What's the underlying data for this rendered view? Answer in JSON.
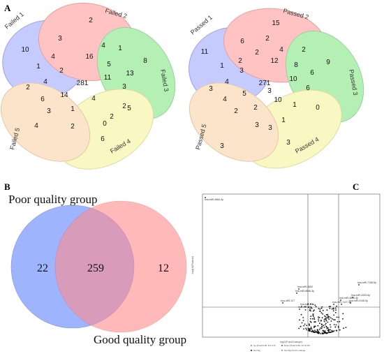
{
  "figure": {
    "panel_a_label": "A",
    "panel_b_label": "B",
    "panel_c_label": "C"
  },
  "venn_failed": {
    "sets": [
      "Failed 1",
      "Failed 2",
      "Failed 3",
      "Failed 4",
      "Failed 5"
    ],
    "colors": [
      "#7f8cff",
      "#ff7b7b",
      "#5be05b",
      "#f5f07a",
      "#f7c48a"
    ],
    "regions": [
      "10",
      "3",
      "2",
      "4",
      "16",
      "4",
      "1",
      "8",
      "13",
      "5",
      "1",
      "2",
      "281",
      "11",
      "3",
      "2",
      "4",
      "14",
      "6",
      "2",
      "3",
      "1",
      "4",
      "2",
      "5",
      "4",
      "2",
      "0",
      "6"
    ]
  },
  "venn_passed": {
    "sets": [
      "Passed 1",
      "Passed 2",
      "Passed 3",
      "Passed 4",
      "Passed 5"
    ],
    "colors": [
      "#7f8cff",
      "#ff7b7b",
      "#5be05b",
      "#f5f07a",
      "#f7c48a"
    ],
    "regions": [
      "11",
      "6",
      "15",
      "2",
      "2",
      "2",
      "4",
      "2",
      "12",
      "9",
      "8",
      "6",
      "1",
      "3",
      "271",
      "10",
      "6",
      "3",
      "4",
      "5",
      "3",
      "10",
      "4",
      "2",
      "2",
      "1",
      "1",
      "0",
      "3",
      "3",
      "3",
      "3"
    ]
  },
  "venn_quality": {
    "left_label": "Poor quality group",
    "right_label": "Good quality group",
    "left_only": "22",
    "overlap": "259",
    "right_only": "12",
    "left_color": "#7f9bff",
    "right_color": "#ff8c8c"
  },
  "volcano": {
    "ylabel": "-log10(Pvalue)",
    "xlabel": "log2(FoldChange)",
    "labeled_points": [
      "hsa-miR-4684-3p",
      "hsa-miR-7108-5p",
      "hsa-miR-4433-5p",
      "hsa-miR-4808-3p",
      "hsa-miR-3145-5p",
      "hsa-miR-7127-3p",
      "hsa-miR-3653",
      "hsa-miR-6846-3p",
      "hsa-miR-127",
      "hsa-miR-93",
      "hsa-miR-38"
    ],
    "legend": [
      "Up (Pval<0.05, FC>1.5)",
      "Down (Pval<0.05, FC<0.67)",
      "Not Sig",
      "Not Sig but FC change"
    ]
  }
}
